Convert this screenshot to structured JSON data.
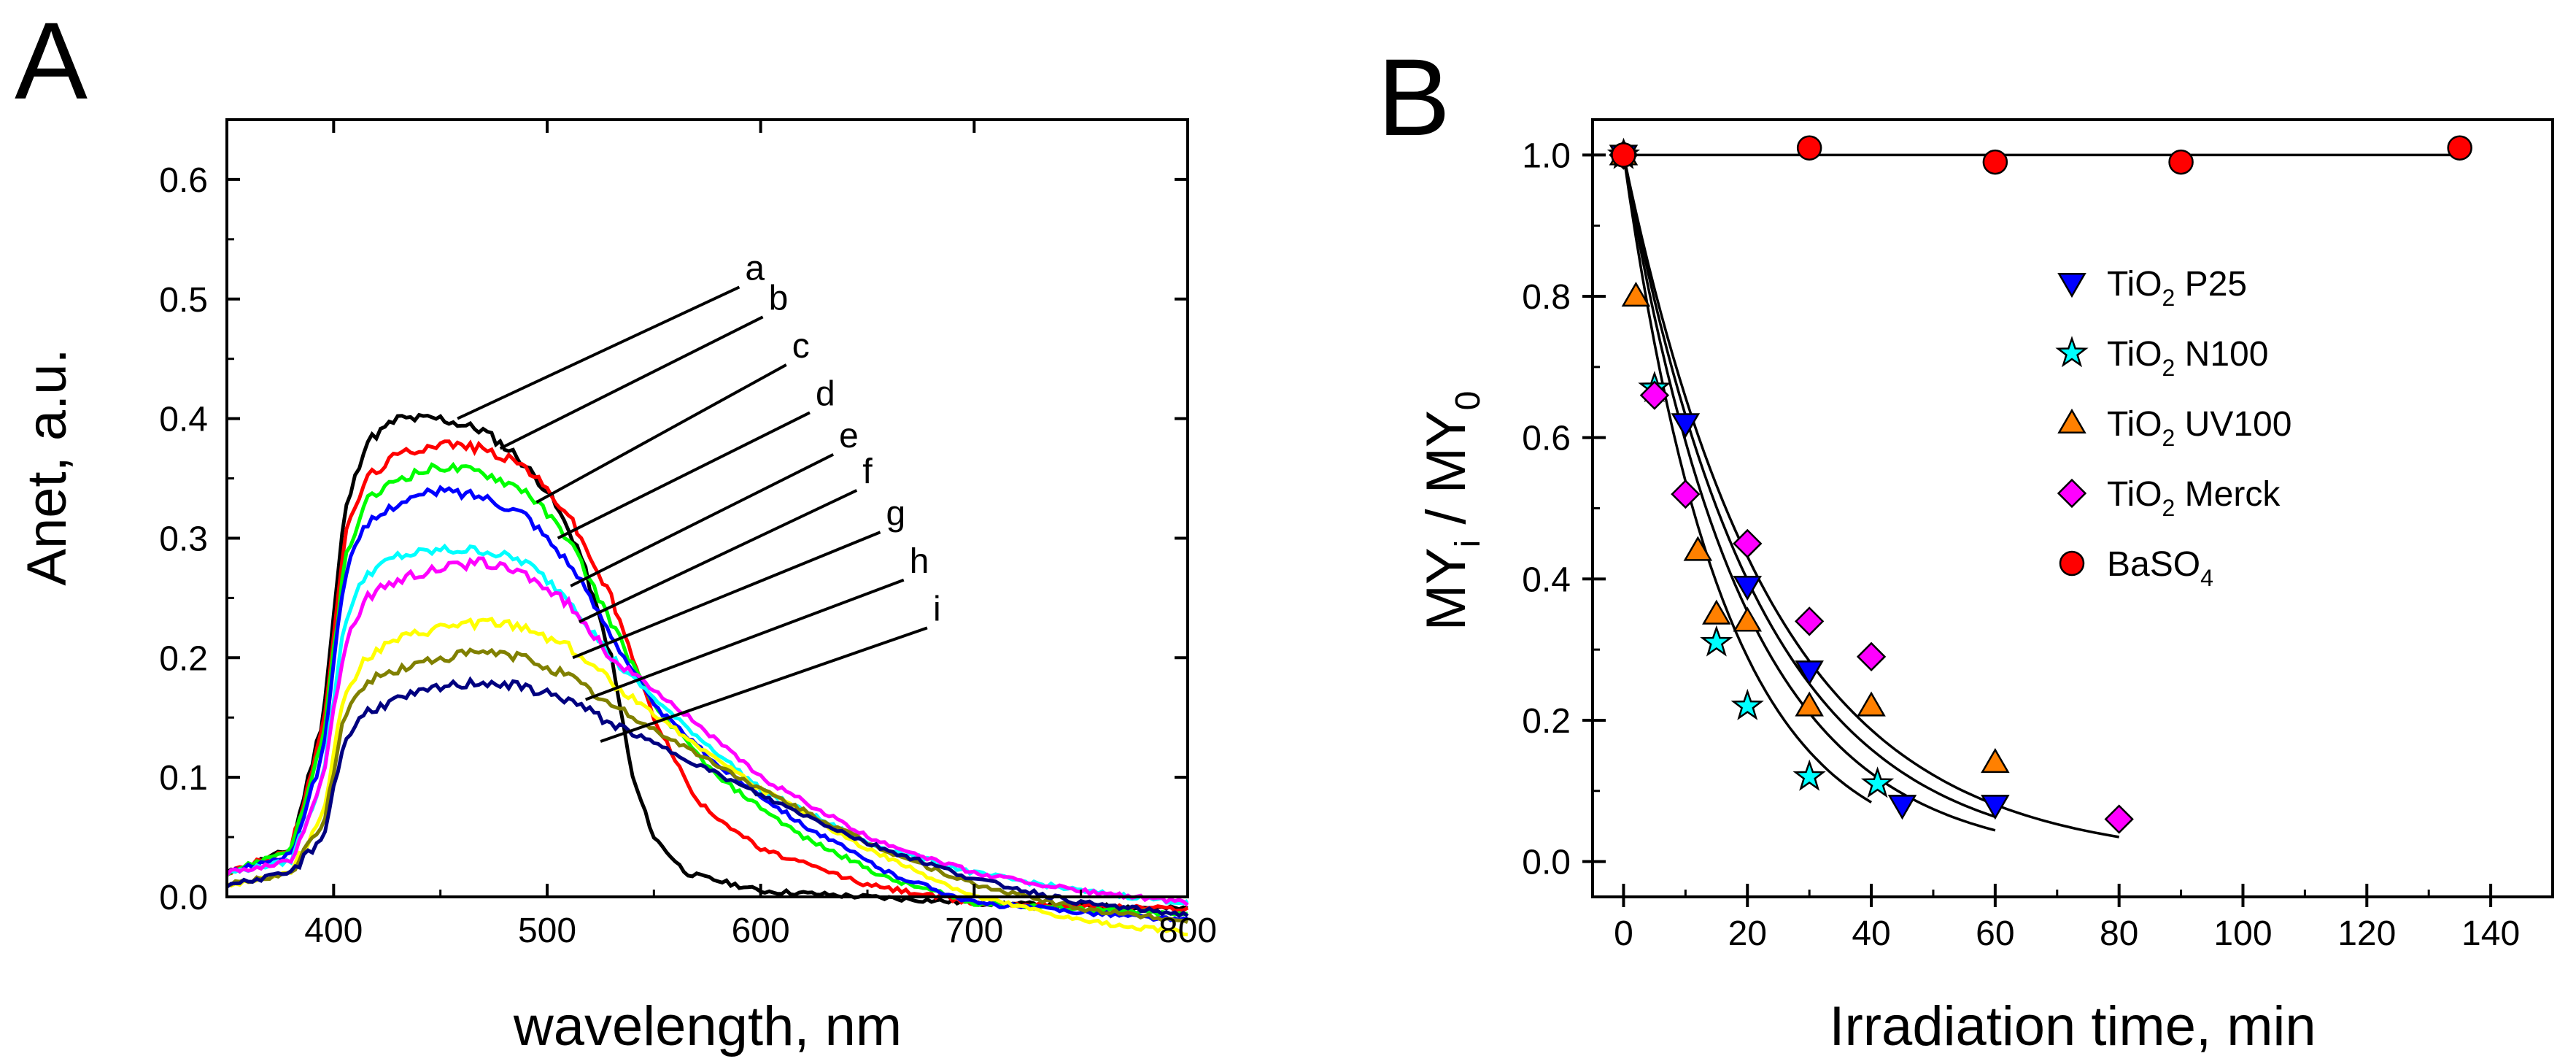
{
  "panels": [
    {
      "letter": "A"
    },
    {
      "letter": "B"
    }
  ],
  "chart_data": [
    {
      "type": "line",
      "panel": "A",
      "xlabel": "wavelength, nm",
      "ylabel": "Anet, a.u.",
      "xlim": [
        350,
        800
      ],
      "ylim": [
        0,
        0.65
      ],
      "xticks": [
        400,
        500,
        600,
        700,
        800
      ],
      "xtick_labels": [
        "400",
        "500",
        "600",
        "700",
        "800"
      ],
      "yticks": [
        0.0,
        0.1,
        0.2,
        0.3,
        0.4,
        0.5,
        0.6
      ],
      "ytick_labels": [
        "0.0",
        "0.1",
        "0.2",
        "0.3",
        "0.4",
        "0.5",
        "0.6"
      ],
      "series": [
        {
          "name": "a",
          "color": "#000000",
          "pts": [
            [
              350,
              0.02
            ],
            [
              380,
              0.04
            ],
            [
              395,
              0.15
            ],
            [
              405,
              0.32
            ],
            [
              415,
              0.38
            ],
            [
              430,
              0.4
            ],
            [
              450,
              0.4
            ],
            [
              470,
              0.39
            ],
            [
              485,
              0.37
            ],
            [
              500,
              0.34
            ],
            [
              515,
              0.29
            ],
            [
              530,
              0.2
            ],
            [
              540,
              0.1
            ],
            [
              550,
              0.05
            ],
            [
              565,
              0.02
            ],
            [
              600,
              0.005
            ],
            [
              650,
              0.0
            ],
            [
              700,
              -0.005
            ],
            [
              800,
              -0.01
            ]
          ]
        },
        {
          "name": "b",
          "color": "#ff0000",
          "pts": [
            [
              350,
              0.02
            ],
            [
              380,
              0.04
            ],
            [
              395,
              0.14
            ],
            [
              405,
              0.3
            ],
            [
              415,
              0.35
            ],
            [
              430,
              0.37
            ],
            [
              450,
              0.38
            ],
            [
              470,
              0.375
            ],
            [
              490,
              0.36
            ],
            [
              510,
              0.32
            ],
            [
              530,
              0.25
            ],
            [
              550,
              0.15
            ],
            [
              570,
              0.08
            ],
            [
              600,
              0.04
            ],
            [
              650,
              0.01
            ],
            [
              700,
              -0.005
            ],
            [
              800,
              -0.01
            ]
          ]
        },
        {
          "name": "c",
          "color": "#00ff00",
          "pts": [
            [
              350,
              0.02
            ],
            [
              380,
              0.04
            ],
            [
              395,
              0.13
            ],
            [
              405,
              0.28
            ],
            [
              415,
              0.33
            ],
            [
              430,
              0.35
            ],
            [
              450,
              0.36
            ],
            [
              470,
              0.355
            ],
            [
              490,
              0.34
            ],
            [
              510,
              0.3
            ],
            [
              530,
              0.23
            ],
            [
              550,
              0.16
            ],
            [
              580,
              0.1
            ],
            [
              620,
              0.05
            ],
            [
              660,
              0.015
            ],
            [
              700,
              -0.005
            ],
            [
              800,
              -0.015
            ]
          ]
        },
        {
          "name": "d",
          "color": "#0000ff",
          "pts": [
            [
              350,
              0.02
            ],
            [
              380,
              0.035
            ],
            [
              395,
              0.12
            ],
            [
              405,
              0.27
            ],
            [
              415,
              0.31
            ],
            [
              430,
              0.33
            ],
            [
              450,
              0.34
            ],
            [
              470,
              0.335
            ],
            [
              490,
              0.32
            ],
            [
              510,
              0.28
            ],
            [
              530,
              0.22
            ],
            [
              550,
              0.16
            ],
            [
              580,
              0.11
            ],
            [
              620,
              0.06
            ],
            [
              660,
              0.02
            ],
            [
              700,
              -0.005
            ],
            [
              800,
              -0.02
            ]
          ]
        },
        {
          "name": "e",
          "color": "#00ffff",
          "pts": [
            [
              350,
              0.02
            ],
            [
              380,
              0.03
            ],
            [
              395,
              0.1
            ],
            [
              405,
              0.23
            ],
            [
              415,
              0.27
            ],
            [
              430,
              0.285
            ],
            [
              450,
              0.29
            ],
            [
              470,
              0.29
            ],
            [
              490,
              0.28
            ],
            [
              510,
              0.25
            ],
            [
              530,
              0.2
            ],
            [
              560,
              0.15
            ],
            [
              600,
              0.09
            ],
            [
              650,
              0.045
            ],
            [
              700,
              0.02
            ],
            [
              750,
              0.005
            ],
            [
              800,
              -0.005
            ]
          ]
        },
        {
          "name": "f",
          "color": "#ff00ff",
          "pts": [
            [
              350,
              0.02
            ],
            [
              380,
              0.03
            ],
            [
              395,
              0.1
            ],
            [
              405,
              0.21
            ],
            [
              415,
              0.25
            ],
            [
              430,
              0.265
            ],
            [
              450,
              0.275
            ],
            [
              470,
              0.28
            ],
            [
              490,
              0.27
            ],
            [
              510,
              0.245
            ],
            [
              530,
              0.2
            ],
            [
              560,
              0.16
            ],
            [
              600,
              0.1
            ],
            [
              650,
              0.05
            ],
            [
              700,
              0.02
            ],
            [
              750,
              0.005
            ],
            [
              800,
              -0.005
            ]
          ]
        },
        {
          "name": "g",
          "color": "#ffff00",
          "pts": [
            [
              350,
              0.01
            ],
            [
              380,
              0.02
            ],
            [
              395,
              0.07
            ],
            [
              405,
              0.17
            ],
            [
              415,
              0.2
            ],
            [
              430,
              0.215
            ],
            [
              450,
              0.225
            ],
            [
              470,
              0.23
            ],
            [
              490,
              0.225
            ],
            [
              510,
              0.21
            ],
            [
              530,
              0.18
            ],
            [
              560,
              0.14
            ],
            [
              600,
              0.09
            ],
            [
              650,
              0.04
            ],
            [
              700,
              0.0
            ],
            [
              750,
              -0.02
            ],
            [
              800,
              -0.03
            ]
          ]
        },
        {
          "name": "h",
          "color": "#808000",
          "pts": [
            [
              350,
              0.01
            ],
            [
              380,
              0.02
            ],
            [
              395,
              0.06
            ],
            [
              405,
              0.15
            ],
            [
              415,
              0.18
            ],
            [
              430,
              0.19
            ],
            [
              450,
              0.2
            ],
            [
              470,
              0.205
            ],
            [
              490,
              0.2
            ],
            [
              510,
              0.185
            ],
            [
              530,
              0.16
            ],
            [
              560,
              0.13
            ],
            [
              600,
              0.09
            ],
            [
              650,
              0.045
            ],
            [
              700,
              0.01
            ],
            [
              750,
              -0.01
            ],
            [
              800,
              -0.02
            ]
          ]
        },
        {
          "name": "i",
          "color": "#000080",
          "pts": [
            [
              350,
              0.01
            ],
            [
              380,
              0.02
            ],
            [
              395,
              0.05
            ],
            [
              405,
              0.13
            ],
            [
              415,
              0.155
            ],
            [
              430,
              0.165
            ],
            [
              450,
              0.175
            ],
            [
              470,
              0.18
            ],
            [
              490,
              0.175
            ],
            [
              510,
              0.165
            ],
            [
              530,
              0.145
            ],
            [
              560,
              0.12
            ],
            [
              600,
              0.085
            ],
            [
              650,
              0.045
            ],
            [
              700,
              0.015
            ],
            [
              750,
              -0.005
            ],
            [
              800,
              -0.015
            ]
          ]
        }
      ],
      "curve_label_targets": [
        {
          "label": "a",
          "x": 458,
          "y": 0.4
        },
        {
          "label": "b",
          "x": 478,
          "y": 0.375
        },
        {
          "label": "c",
          "x": 495,
          "y": 0.33
        },
        {
          "label": "d",
          "x": 505,
          "y": 0.3
        },
        {
          "label": "e",
          "x": 511,
          "y": 0.26
        },
        {
          "label": "f",
          "x": 515,
          "y": 0.23
        },
        {
          "label": "g",
          "x": 512,
          "y": 0.2
        },
        {
          "label": "h",
          "x": 518,
          "y": 0.165
        },
        {
          "label": "i",
          "x": 525,
          "y": 0.13
        }
      ],
      "curve_label_ends": [
        {
          "label": "a",
          "x": 590,
          "y": 0.51
        },
        {
          "label": "b",
          "x": 601,
          "y": 0.485
        },
        {
          "label": "c",
          "x": 612,
          "y": 0.445
        },
        {
          "label": "d",
          "x": 623,
          "y": 0.405
        },
        {
          "label": "e",
          "x": 634,
          "y": 0.37
        },
        {
          "label": "f",
          "x": 645,
          "y": 0.34
        },
        {
          "label": "g",
          "x": 656,
          "y": 0.305
        },
        {
          "label": "h",
          "x": 667,
          "y": 0.265
        },
        {
          "label": "i",
          "x": 678,
          "y": 0.225
        }
      ]
    },
    {
      "type": "scatter",
      "panel": "B",
      "xlabel": "Irradiation time, min",
      "ylabel": "MYi / MY0",
      "ylabel_parts": {
        "main1": "MY",
        "sub1": "i",
        "mid": " / MY",
        "sub2": "0"
      },
      "xlim": [
        -5,
        150
      ],
      "ylim": [
        -0.05,
        1.05
      ],
      "xticks": [
        0,
        20,
        40,
        60,
        80,
        100,
        120,
        140
      ],
      "xtick_labels": [
        "0",
        "20",
        "40",
        "60",
        "80",
        "100",
        "120",
        "140"
      ],
      "yticks": [
        0.0,
        0.2,
        0.4,
        0.6,
        0.8,
        1.0
      ],
      "ytick_labels": [
        "0.0",
        "0.2",
        "0.4",
        "0.6",
        "0.8",
        "1.0"
      ],
      "legend_position": "upper-right",
      "series": [
        {
          "name": "TiO2 P25",
          "legend": {
            "main": "TiO",
            "sub": "2",
            "rest": " P25"
          },
          "marker": "triangle-down",
          "color": "#0000ff",
          "points": [
            [
              0,
              1.0
            ],
            [
              10,
              0.62
            ],
            [
              20,
              0.39
            ],
            [
              30,
              0.27
            ],
            [
              45,
              0.08
            ],
            [
              60,
              0.08
            ]
          ]
        },
        {
          "name": "TiO2 N100",
          "legend": {
            "main": "TiO",
            "sub": "2",
            "rest": " N100"
          },
          "marker": "star",
          "color": "#00ffff",
          "points": [
            [
              0,
              1.0
            ],
            [
              5,
              0.67
            ],
            [
              15,
              0.31
            ],
            [
              20,
              0.22
            ],
            [
              30,
              0.12
            ],
            [
              41,
              0.11
            ]
          ]
        },
        {
          "name": "TiO2 UV100",
          "legend": {
            "main": "TiO",
            "sub": "2",
            "rest": " UV100"
          },
          "marker": "triangle-up",
          "color": "#ff8000",
          "points": [
            [
              0,
              1.0
            ],
            [
              2,
              0.8
            ],
            [
              12,
              0.44
            ],
            [
              15,
              0.35
            ],
            [
              20,
              0.34
            ],
            [
              30,
              0.22
            ],
            [
              40,
              0.22
            ],
            [
              60,
              0.14
            ]
          ]
        },
        {
          "name": "TiO2 Merck",
          "legend": {
            "main": "TiO",
            "sub": "2",
            "rest": " Merck"
          },
          "marker": "diamond",
          "color": "#ff00ff",
          "points": [
            [
              0,
              1.0
            ],
            [
              5,
              0.66
            ],
            [
              10,
              0.52
            ],
            [
              20,
              0.45
            ],
            [
              30,
              0.34
            ],
            [
              40,
              0.29
            ],
            [
              80,
              0.06
            ]
          ]
        },
        {
          "name": "BaSO4",
          "legend": {
            "main": "BaSO",
            "sub": "4",
            "rest": ""
          },
          "marker": "circle",
          "color": "#ff0000",
          "points": [
            [
              0,
              1.0
            ],
            [
              30,
              1.01
            ],
            [
              60,
              0.99
            ],
            [
              90,
              0.99
            ],
            [
              135,
              1.01
            ]
          ]
        }
      ],
      "fit_curves": [
        {
          "k": 0.062,
          "x_end": 40,
          "c": 0.0
        },
        {
          "k": 0.052,
          "x_end": 60,
          "c": 0.0
        },
        {
          "k": 0.046,
          "x_end": 60,
          "c": 0.0
        },
        {
          "k": 0.042,
          "x_end": 80,
          "c": 0.0
        },
        {
          "k": 0.0,
          "x_end": 135,
          "c": 1.0
        }
      ]
    }
  ]
}
